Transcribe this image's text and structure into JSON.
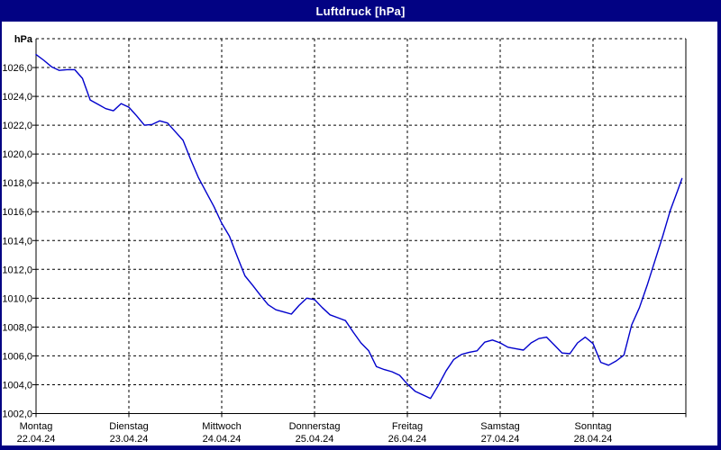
{
  "window": {
    "title": "Luftdruck [hPa]"
  },
  "colors": {
    "frame": "#020283",
    "title_text": "#ffffff",
    "plot_background": "#ffffff",
    "grid": "#000000",
    "series_line": "#0000cc",
    "label_text": "#000000"
  },
  "chart_data": {
    "type": "line",
    "title": "Luftdruck [hPa]",
    "ylabel": "hPa",
    "xlabel": "",
    "legend": "none",
    "grid": "dashed",
    "y_min": 1002,
    "y_max": 1028,
    "y_step": 2,
    "y_tick_labels": [
      "1026,0",
      "1024,0",
      "1022,0",
      "1020,0",
      "1018,0",
      "1016,0",
      "1014,0",
      "1012,0",
      "1010,0",
      "1008,0",
      "1006,0",
      "1004,0",
      "1002,0"
    ],
    "x_days": [
      {
        "name": "Montag",
        "date": "22.04.24"
      },
      {
        "name": "Dienstag",
        "date": "23.04.24"
      },
      {
        "name": "Mittwoch",
        "date": "24.04.24"
      },
      {
        "name": "Donnerstag",
        "date": "25.04.24"
      },
      {
        "name": "Freitag",
        "date": "26.04.24"
      },
      {
        "name": "Samstag",
        "date": "27.04.24"
      },
      {
        "name": "Sonntag",
        "date": "28.04.24"
      }
    ],
    "sample_interval_hours": 2,
    "hours_total": 168,
    "series": [
      {
        "name": "Luftdruck",
        "values": [
          1026.9,
          1026.5,
          1026.05,
          1025.8,
          1025.85,
          1025.85,
          1025.25,
          1023.75,
          1023.45,
          1023.15,
          1023.0,
          1023.5,
          1023.25,
          1022.65,
          1022.0,
          1022.05,
          1022.3,
          1022.15,
          1021.55,
          1020.95,
          1019.6,
          1018.35,
          1017.35,
          1016.35,
          1015.2,
          1014.3,
          1012.9,
          1011.55,
          1010.9,
          1010.2,
          1009.55,
          1009.2,
          1009.05,
          1008.9,
          1009.5,
          1010.0,
          1009.9,
          1009.35,
          1008.85,
          1008.65,
          1008.45,
          1007.65,
          1006.9,
          1006.35,
          1005.25,
          1005.05,
          1004.9,
          1004.65,
          1004.05,
          1003.55,
          1003.3,
          1003.05,
          1003.95,
          1004.95,
          1005.75,
          1006.1,
          1006.25,
          1006.35,
          1006.95,
          1007.1,
          1006.9,
          1006.6,
          1006.5,
          1006.4,
          1006.9,
          1007.2,
          1007.3,
          1006.75,
          1006.2,
          1006.15,
          1006.9,
          1007.3,
          1006.85,
          1005.55,
          1005.35,
          1005.65,
          1006.05,
          1008.15,
          1009.35,
          1010.9,
          1012.6,
          1014.3,
          1016.1,
          1017.55,
          1018.3
        ]
      }
    ]
  }
}
